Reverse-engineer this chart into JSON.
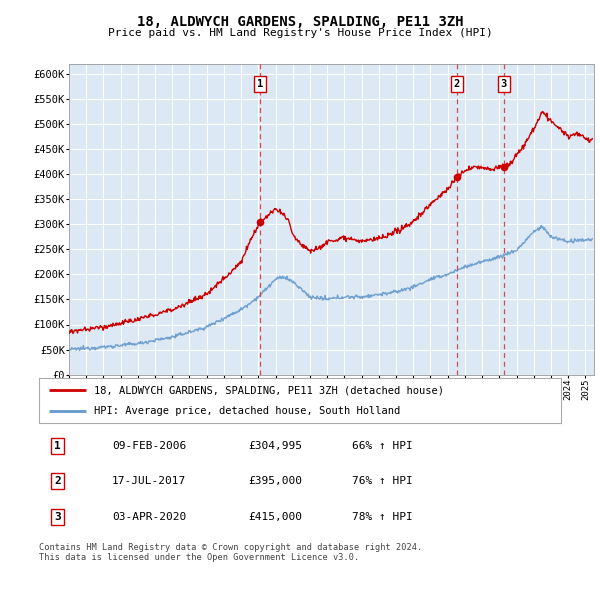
{
  "title": "18, ALDWYCH GARDENS, SPALDING, PE11 3ZH",
  "subtitle": "Price paid vs. HM Land Registry's House Price Index (HPI)",
  "plot_bg_color": "#dce9f5",
  "ylim": [
    0,
    620000
  ],
  "yticks": [
    0,
    50000,
    100000,
    150000,
    200000,
    250000,
    300000,
    350000,
    400000,
    450000,
    500000,
    550000,
    600000
  ],
  "ytick_labels": [
    "£0",
    "£50K",
    "£100K",
    "£150K",
    "£200K",
    "£250K",
    "£300K",
    "£350K",
    "£400K",
    "£450K",
    "£500K",
    "£550K",
    "£600K"
  ],
  "xlim_start": 1995.0,
  "xlim_end": 2025.5,
  "sale_dates": [
    2006.09,
    2017.54,
    2020.26
  ],
  "sale_labels": [
    "1",
    "2",
    "3"
  ],
  "sale_prices": [
    304995,
    395000,
    415000
  ],
  "red_line_color": "#cc0000",
  "blue_line_color": "#6699cc",
  "dashed_line_color": "#cc3333",
  "grid_color": "#ffffff",
  "legend_entries": [
    "18, ALDWYCH GARDENS, SPALDING, PE11 3ZH (detached house)",
    "HPI: Average price, detached house, South Holland"
  ],
  "table_rows": [
    [
      "1",
      "09-FEB-2006",
      "£304,995",
      "66% ↑ HPI"
    ],
    [
      "2",
      "17-JUL-2017",
      "£395,000",
      "76% ↑ HPI"
    ],
    [
      "3",
      "03-APR-2020",
      "£415,000",
      "78% ↑ HPI"
    ]
  ],
  "footnote1": "Contains HM Land Registry data © Crown copyright and database right 2024.",
  "footnote2": "This data is licensed under the Open Government Licence v3.0."
}
